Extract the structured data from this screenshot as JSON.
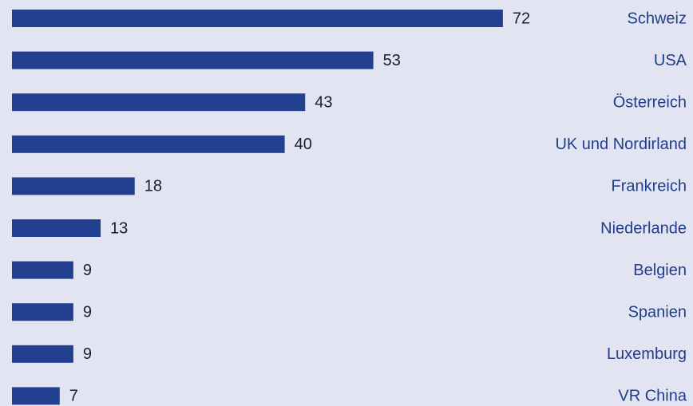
{
  "chart_data": {
    "type": "bar",
    "orientation": "horizontal",
    "categories": [
      "Schweiz",
      "USA",
      "Österreich",
      "UK und Nordirland",
      "Frankreich",
      "Niederlande",
      "Belgien",
      "Spanien",
      "Luxemburg",
      "VR China"
    ],
    "values": [
      72,
      53,
      43,
      40,
      18,
      13,
      9,
      9,
      9,
      7
    ],
    "color": "#233f8f"
  }
}
